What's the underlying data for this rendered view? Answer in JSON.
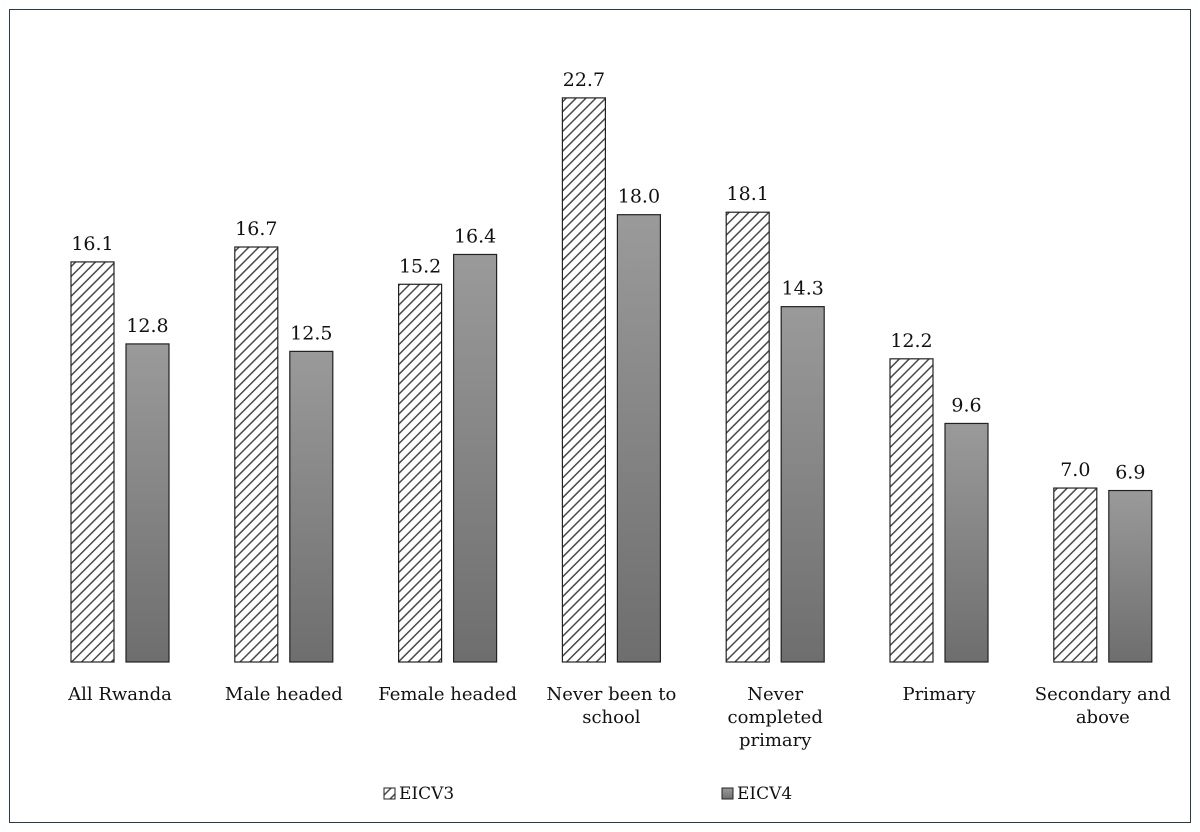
{
  "chart_data": {
    "type": "bar",
    "title": "",
    "xlabel": "",
    "ylabel": "",
    "ylim": [
      0,
      25
    ],
    "grid": false,
    "legend": "bottom",
    "categories": [
      [
        "All Rwanda"
      ],
      [
        "Male headed"
      ],
      [
        "Female headed"
      ],
      [
        "Never been to",
        "school"
      ],
      [
        "Never",
        "completed",
        "primary"
      ],
      [
        "Primary"
      ],
      [
        "Secondary and",
        "above"
      ]
    ],
    "series": [
      {
        "name": "EICV3",
        "values": [
          16.1,
          16.7,
          15.2,
          22.7,
          18.1,
          12.2,
          7.0
        ],
        "fill": "hatched",
        "color": "#7f7f7f"
      },
      {
        "name": "EICV4",
        "values": [
          12.8,
          12.5,
          16.4,
          18.0,
          14.3,
          9.6,
          6.9
        ],
        "fill": "gradient",
        "color": "#8c8c8c"
      }
    ]
  }
}
